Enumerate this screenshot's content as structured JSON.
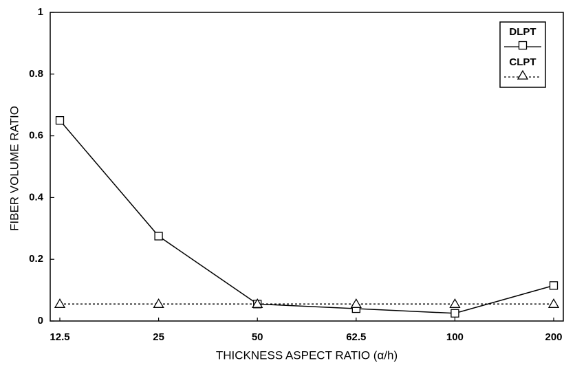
{
  "chart_data": {
    "type": "line",
    "xlabel": "THICKNESS ASPECT RATIO (α/h)",
    "ylabel": "FIBER VOLUME RATIO",
    "categories": [
      "12.5",
      "25",
      "50",
      "62.5",
      "100",
      "200"
    ],
    "series": [
      {
        "name": "DLPT",
        "color": "#000000",
        "marker": "square",
        "line_style": "solid",
        "values": [
          0.65,
          0.275,
          0.055,
          0.04,
          0.025,
          0.115
        ]
      },
      {
        "name": "CLPT",
        "color": "#000000",
        "marker": "triangle",
        "line_style": "dotted",
        "values": [
          0.055,
          0.055,
          0.055,
          0.055,
          0.055,
          0.055
        ]
      }
    ],
    "ylim": [
      0,
      1
    ],
    "yticks": [
      0,
      0.2,
      0.4,
      0.6,
      0.8,
      1
    ],
    "grid": false,
    "legend": "upper right"
  }
}
